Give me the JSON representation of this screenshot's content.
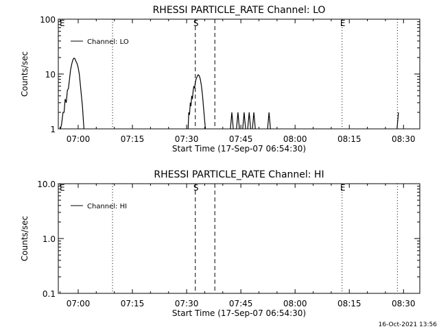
{
  "footer_timestamp": "16-Oct-2021 13:56",
  "chart_data": [
    {
      "type": "line",
      "title": "RHESSI PARTICLE_RATE Channel: LO",
      "xlabel": "Start Time (17-Sep-07 06:54:30)",
      "ylabel": "Counts/sec",
      "yscale": "log",
      "ylim": [
        1,
        100
      ],
      "xlim_minutes": [
        0,
        100
      ],
      "x_ticks": [
        {
          "t": 5.5,
          "label": "07:00"
        },
        {
          "t": 20.5,
          "label": "07:15"
        },
        {
          "t": 35.5,
          "label": "07:30"
        },
        {
          "t": 50.5,
          "label": "07:45"
        },
        {
          "t": 65.5,
          "label": "08:00"
        },
        {
          "t": 80.5,
          "label": "08:15"
        },
        {
          "t": 95.5,
          "label": "08:30"
        }
      ],
      "y_ticks": [
        {
          "v": 1,
          "label": "1"
        },
        {
          "v": 10,
          "label": "10"
        },
        {
          "v": 100,
          "label": "100"
        }
      ],
      "legend": {
        "label": "Channel: LO",
        "position": "top-left"
      },
      "markers": [
        {
          "t": 15.0,
          "style": "dotted",
          "label": ""
        },
        {
          "t": 37.9,
          "style": "dashed",
          "label": "S"
        },
        {
          "t": 43.3,
          "style": "dashed",
          "label": ""
        },
        {
          "t": 78.5,
          "style": "dotted",
          "label": "E"
        },
        {
          "t": 93.8,
          "style": "dotted",
          "label": ""
        }
      ],
      "edge_labels": [
        {
          "t": 0.2,
          "label": "E"
        }
      ],
      "series": [
        {
          "name": "Channel: LO",
          "points": [
            [
              0.6,
              1.0
            ],
            [
              0.9,
              1.2
            ],
            [
              1.3,
              2.0
            ],
            [
              1.6,
              2.0
            ],
            [
              1.9,
              3.5
            ],
            [
              2.2,
              3.0
            ],
            [
              2.5,
              5.0
            ],
            [
              2.8,
              5.5
            ],
            [
              3.1,
              8.0
            ],
            [
              3.4,
              12.0
            ],
            [
              3.7,
              15.0
            ],
            [
              4.0,
              18.0
            ],
            [
              4.3,
              19.5
            ],
            [
              4.6,
              19.0
            ],
            [
              4.9,
              17.0
            ],
            [
              5.2,
              15.5
            ],
            [
              5.5,
              13.0
            ],
            [
              5.8,
              10.0
            ],
            [
              6.1,
              6.5
            ],
            [
              6.4,
              4.0
            ],
            [
              6.7,
              2.5
            ],
            [
              6.9,
              1.5
            ],
            [
              7.1,
              1.0
            ]
          ]
        },
        {
          "name": "Channel: LO",
          "points": [
            [
              35.9,
              1.0
            ],
            [
              36.1,
              2.0
            ],
            [
              36.3,
              1.8
            ],
            [
              36.5,
              3.0
            ],
            [
              36.7,
              2.6
            ],
            [
              36.9,
              4.0
            ],
            [
              37.1,
              3.5
            ],
            [
              37.3,
              5.0
            ],
            [
              37.5,
              6.0
            ],
            [
              37.7,
              5.5
            ],
            [
              37.9,
              7.0
            ],
            [
              38.1,
              8.0
            ],
            [
              38.4,
              9.0
            ],
            [
              38.7,
              9.7
            ],
            [
              39.0,
              9.3
            ],
            [
              39.3,
              8.0
            ],
            [
              39.6,
              6.0
            ],
            [
              39.9,
              4.0
            ],
            [
              40.2,
              2.3
            ],
            [
              40.5,
              1.4
            ],
            [
              40.7,
              1.0
            ]
          ]
        },
        {
          "name": "Channel: LO",
          "points": [
            [
              47.6,
              1.0
            ],
            [
              48.0,
              2.0
            ],
            [
              48.4,
              1.0
            ]
          ]
        },
        {
          "name": "Channel: LO",
          "points": [
            [
              49.3,
              1.0
            ],
            [
              49.7,
              2.0
            ],
            [
              50.1,
              1.0
            ]
          ]
        },
        {
          "name": "Channel: LO",
          "points": [
            [
              51.0,
              1.0
            ],
            [
              51.4,
              2.0
            ],
            [
              51.8,
              1.0
            ]
          ]
        },
        {
          "name": "Channel: LO",
          "points": [
            [
              52.4,
              1.0
            ],
            [
              52.8,
              2.0
            ],
            [
              53.2,
              1.0
            ]
          ]
        },
        {
          "name": "Channel: LO",
          "points": [
            [
              53.7,
              1.0
            ],
            [
              54.1,
              2.0
            ],
            [
              54.5,
              1.0
            ]
          ]
        },
        {
          "name": "Channel: LO",
          "points": [
            [
              57.9,
              1.0
            ],
            [
              58.3,
              2.0
            ],
            [
              58.7,
              1.0
            ]
          ]
        },
        {
          "name": "Channel: LO",
          "points": [
            [
              93.7,
              1.0
            ],
            [
              94.1,
              2.0
            ]
          ]
        }
      ]
    },
    {
      "type": "line",
      "title": "RHESSI PARTICLE_RATE Channel: HI",
      "xlabel": "Start Time (17-Sep-07 06:54:30)",
      "ylabel": "Counts/sec",
      "yscale": "log",
      "ylim": [
        0.1,
        10
      ],
      "xlim_minutes": [
        0,
        100
      ],
      "x_ticks": [
        {
          "t": 5.5,
          "label": "07:00"
        },
        {
          "t": 20.5,
          "label": "07:15"
        },
        {
          "t": 35.5,
          "label": "07:30"
        },
        {
          "t": 50.5,
          "label": "07:45"
        },
        {
          "t": 65.5,
          "label": "08:00"
        },
        {
          "t": 80.5,
          "label": "08:15"
        },
        {
          "t": 95.5,
          "label": "08:30"
        }
      ],
      "y_ticks": [
        {
          "v": 0.1,
          "label": "0.1"
        },
        {
          "v": 1,
          "label": "1.0"
        },
        {
          "v": 10,
          "label": "10.0"
        }
      ],
      "legend": {
        "label": "Channel: HI",
        "position": "top-left"
      },
      "markers": [
        {
          "t": 15.0,
          "style": "dotted",
          "label": ""
        },
        {
          "t": 37.9,
          "style": "dashed",
          "label": "S"
        },
        {
          "t": 43.3,
          "style": "dashed",
          "label": ""
        },
        {
          "t": 78.5,
          "style": "dotted",
          "label": "E"
        },
        {
          "t": 93.8,
          "style": "dotted",
          "label": ""
        }
      ],
      "edge_labels": [
        {
          "t": 0.2,
          "label": "E"
        }
      ],
      "series": []
    }
  ]
}
